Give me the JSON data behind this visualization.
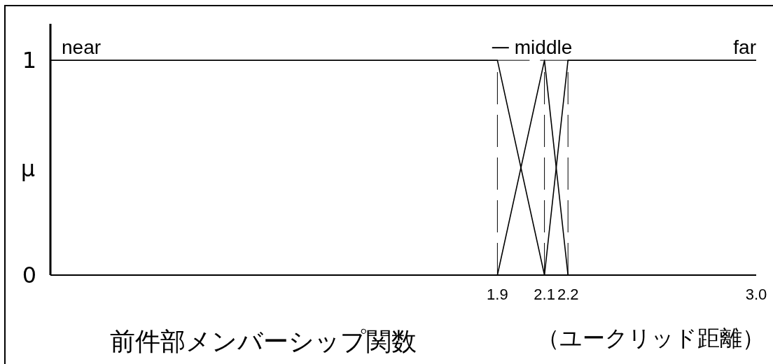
{
  "chart_data": {
    "type": "line",
    "xlabel": "（ユークリッド距離）",
    "ylabel": "μ",
    "annotations": [
      "前件部メンバーシップ関数"
    ],
    "xlim": [
      0,
      3.0
    ],
    "xticks": [
      1.9,
      2.1,
      2.2,
      {
        "value": 3.0,
        "label": "3.0"
      }
    ],
    "ylim": [
      0,
      1.17
    ],
    "yticks": [
      0,
      1
    ],
    "series": [
      {
        "name": "near",
        "color": "#000000",
        "x": [
          0,
          1.9,
          2.1
        ],
        "values": [
          1,
          1,
          0
        ]
      },
      {
        "name": "middle",
        "color": "#000000",
        "x": [
          1.9,
          2.1,
          2.2
        ],
        "values": [
          0,
          1,
          0
        ]
      },
      {
        "name": "far",
        "color": "#000000",
        "x": [
          2.1,
          2.2,
          3.0
        ],
        "values": [
          0,
          1,
          1
        ]
      },
      {
        "color": "#000000",
        "x": [
          1.9,
          2.2
        ],
        "values": [
          1,
          1
        ],
        "line_style": "dashed"
      },
      {
        "color": "#000000",
        "x": [
          1.9,
          1.9
        ],
        "values": [
          0,
          1
        ],
        "line_style": "dashed"
      },
      {
        "color": "#000000",
        "x": [
          2.1,
          2.1
        ],
        "values": [
          0,
          1
        ],
        "line_style": "dashed"
      },
      {
        "color": "#000000",
        "x": [
          2.2,
          2.2
        ],
        "values": [
          0,
          1
        ],
        "line_style": "dashed"
      }
    ],
    "line_style": "solid",
    "marker": "none",
    "grid": false,
    "legend": "top"
  }
}
